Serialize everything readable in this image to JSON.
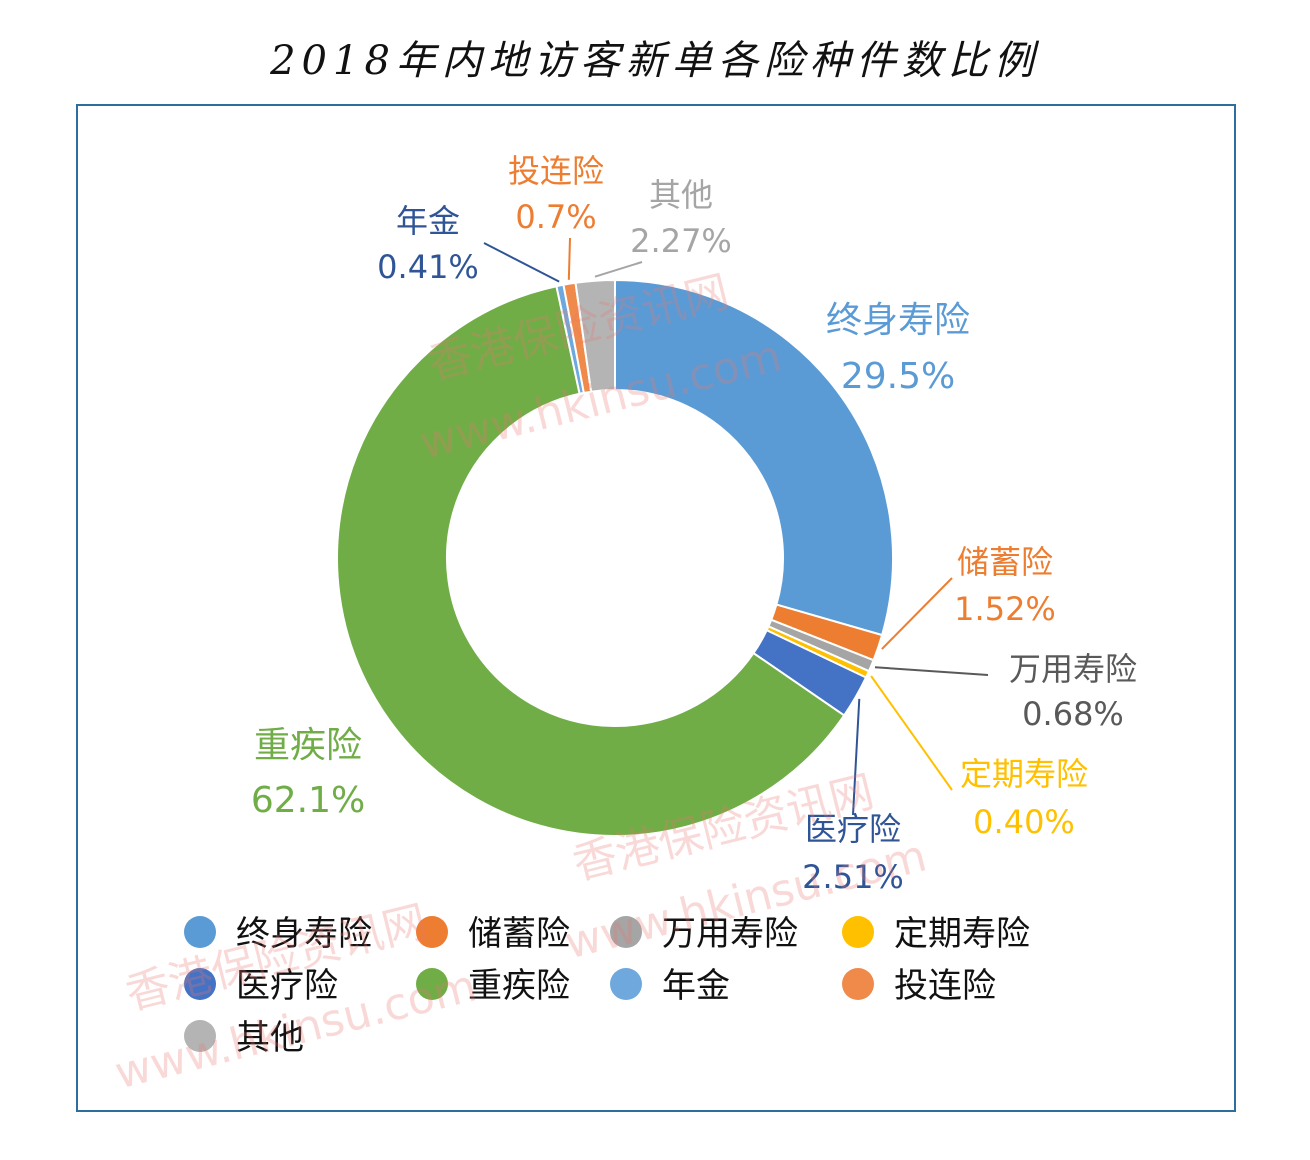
{
  "title": "2018年内地访客新单各险种件数比例",
  "watermark": {
    "cn": "香港保险资讯网",
    "url": "www.hkinsu.com"
  },
  "chart_data": {
    "type": "pie",
    "donut": true,
    "unit": "%",
    "legend_position": "bottom",
    "slices": [
      {
        "name": "终身寿险",
        "value": 29.5,
        "label": "29.5%",
        "color": "#5b9bd5"
      },
      {
        "name": "储蓄险",
        "value": 1.52,
        "label": "1.52%",
        "color": "#ed7d31"
      },
      {
        "name": "万用寿险",
        "value": 0.68,
        "label": "0.68%",
        "color": "#a5a5a5"
      },
      {
        "name": "定期寿险",
        "value": 0.4,
        "label": "0.40%",
        "color": "#ffc000"
      },
      {
        "name": "医疗险",
        "value": 2.51,
        "label": "2.51%",
        "color": "#4472c4"
      },
      {
        "name": "重疾险",
        "value": 62.1,
        "label": "62.1%",
        "color": "#70ad47"
      },
      {
        "name": "年金",
        "value": 0.41,
        "label": "0.41%",
        "color": "#6fa8dc"
      },
      {
        "name": "投连险",
        "value": 0.7,
        "label": "0.7%",
        "color": "#f08a4b"
      },
      {
        "name": "其他",
        "value": 2.27,
        "label": "2.27%",
        "color": "#b4b4b4"
      }
    ]
  },
  "label_text_colors": {
    "终身寿险": "#5b9bd5",
    "储蓄险": "#ed7d31",
    "万用寿险": "#595959",
    "定期寿险": "#ffc000",
    "医疗险": "#2f5597",
    "重疾险": "#70ad47",
    "年金": "#2f5597",
    "投连险": "#ed7d31",
    "其他": "#a5a5a5"
  }
}
